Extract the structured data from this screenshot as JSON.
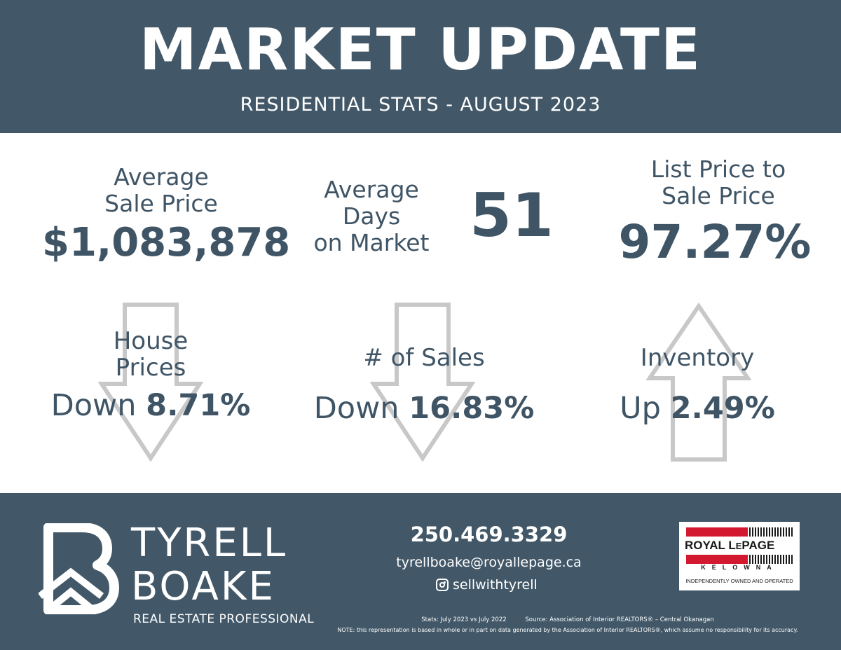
{
  "header": {
    "title": "MARKET UPDATE",
    "subtitle": "RESIDENTIAL STATS - AUGUST 2023"
  },
  "stats": {
    "avg_sale_price": {
      "label_line1": "Average",
      "label_line2": "Sale Price",
      "value": "$1,083,878"
    },
    "avg_days": {
      "label_line1": "Average",
      "label_line2": "Days",
      "label_line3": "on Market",
      "value": "51"
    },
    "list_to_sale": {
      "label_line1": "List Price to",
      "label_line2": "Sale Price",
      "value": "97.27%"
    }
  },
  "changes": {
    "house_prices": {
      "label_line1": "House",
      "label_line2": "Prices",
      "direction": "Down",
      "percent": "8.71%",
      "arrow": "down-arrow-icon"
    },
    "num_sales": {
      "label": "# of Sales",
      "direction": "Down",
      "percent": "16.83%",
      "arrow": "down-arrow-icon"
    },
    "inventory": {
      "label": "Inventory",
      "direction": "Up",
      "percent": "2.49%",
      "arrow": "up-arrow-icon"
    }
  },
  "footer": {
    "brand_line1": "TYRELL",
    "brand_line2": "BOAKE",
    "brand_role": "REAL ESTATE PROFESSIONAL",
    "phone": "250.469.3329",
    "email": "tyrellboake@royallepage.ca",
    "social_handle": "sellwithtyrell",
    "brokerage": {
      "name_part1": "ROYAL L",
      "name_part2": "E",
      "name_part3": "PAGE",
      "city": "KELOWNA",
      "tagline": "INDEPENDENTLY OWNED AND OPERATED"
    },
    "stats_period": "Stats: July 2023 vs July 2022",
    "source": "Source: Association of Interior REALTORS® – Central Okanagan",
    "note": "NOTE: this representation is based in whole or in part on data generated by the Association of Interior REALTORS®, which assume no responsibility for its accuracy."
  },
  "colors": {
    "header_bg": "#425868",
    "text": "#3f5566",
    "arrow_outline": "#c8c8c8",
    "brokerage_red": "#d3192f"
  }
}
